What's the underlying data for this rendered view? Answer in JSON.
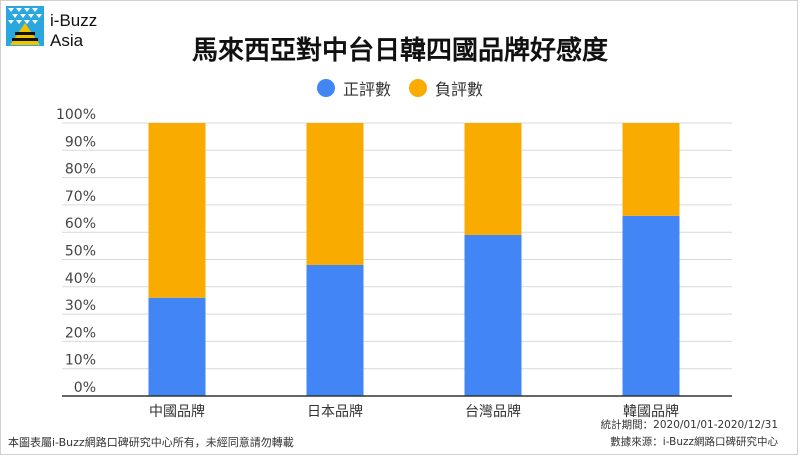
{
  "brand": {
    "line1": "i-Buzz",
    "line2": "Asia"
  },
  "chart_data": {
    "type": "bar",
    "stacked": true,
    "title": "馬來西亞對中台日韓四國品牌好感度",
    "categories": [
      "中國品牌",
      "日本品牌",
      "台灣品牌",
      "韓國品牌"
    ],
    "series": [
      {
        "name": "正評數",
        "color": "#4285f4",
        "values": [
          36,
          48,
          59,
          66
        ]
      },
      {
        "name": "負評數",
        "color": "#f9ab00",
        "values": [
          64,
          52,
          41,
          34
        ]
      }
    ],
    "y_ticks": [
      "0%",
      "10%",
      "20%",
      "30%",
      "40%",
      "50%",
      "60%",
      "70%",
      "80%",
      "90%",
      "100%"
    ],
    "ylim": [
      0,
      100
    ],
    "grid": true,
    "legend_position": "top"
  },
  "footer": {
    "copyright": "本圖表屬i-Buzz網路口碑研究中心所有，未經同意請勿轉載",
    "period": "統計期間：2020/01/01-2020/12/31",
    "source": "數據來源：i-Buzz網路口碑研究中心"
  }
}
